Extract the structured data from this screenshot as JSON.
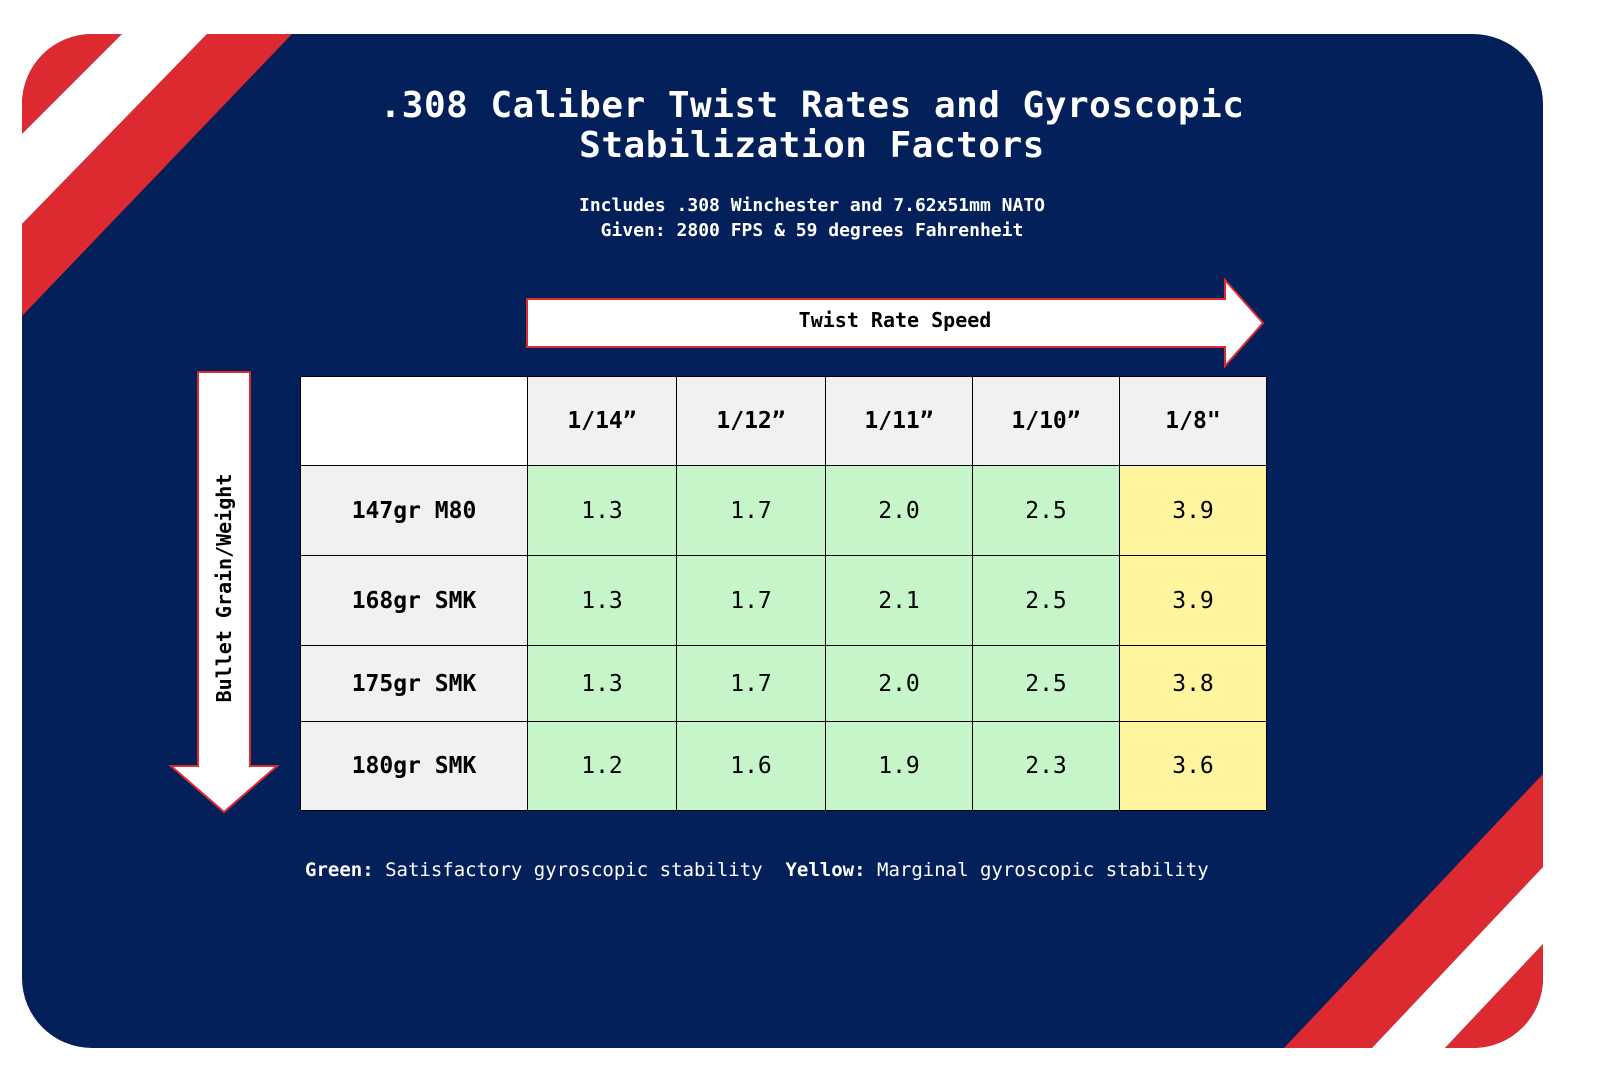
{
  "title_line1": ".308 Caliber Twist Rates and Gyroscopic",
  "title_line2": "Stabilization Factors",
  "subtitle_line1": "Includes .308 Winchester and 7.62x51mm NATO",
  "subtitle_line2": "Given: 2800 FPS & 59 degrees Fahrenheit",
  "horizontal_arrow_label": "Twist Rate Speed",
  "vertical_arrow_label": "Bullet Grain/Weight",
  "colors": {
    "background": "#03205a",
    "stripe_red": "#dc2a30",
    "stripe_white": "#ffffff",
    "satisfactory": "#c5f5c8",
    "marginal": "#fff59e",
    "header": "#f1f1f3"
  },
  "table": {
    "columns": [
      "1/14”",
      "1/12”",
      "1/11”",
      "1/10”",
      "1/8\""
    ],
    "rows": [
      {
        "label": "147gr M80",
        "values": [
          "1.3",
          "1.7",
          "2.0",
          "2.5",
          "3.9"
        ],
        "status": [
          "green",
          "green",
          "green",
          "green",
          "yellow"
        ]
      },
      {
        "label": "168gr SMK",
        "values": [
          "1.3",
          "1.7",
          "2.1",
          "2.5",
          "3.9"
        ],
        "status": [
          "green",
          "green",
          "green",
          "green",
          "yellow"
        ]
      },
      {
        "label": "175gr SMK",
        "values": [
          "1.3",
          "1.7",
          "2.0",
          "2.5",
          "3.8"
        ],
        "status": [
          "green",
          "green",
          "green",
          "green",
          "yellow"
        ]
      },
      {
        "label": "180gr SMK",
        "values": [
          "1.2",
          "1.6",
          "1.9",
          "2.3",
          "3.6"
        ],
        "status": [
          "green",
          "green",
          "green",
          "green",
          "yellow"
        ]
      }
    ]
  },
  "legend": {
    "green_key": "Green:",
    "green_text": "Satisfactory gyroscopic stability",
    "yellow_key": "Yellow:",
    "yellow_text": "Marginal gyroscopic stability"
  }
}
